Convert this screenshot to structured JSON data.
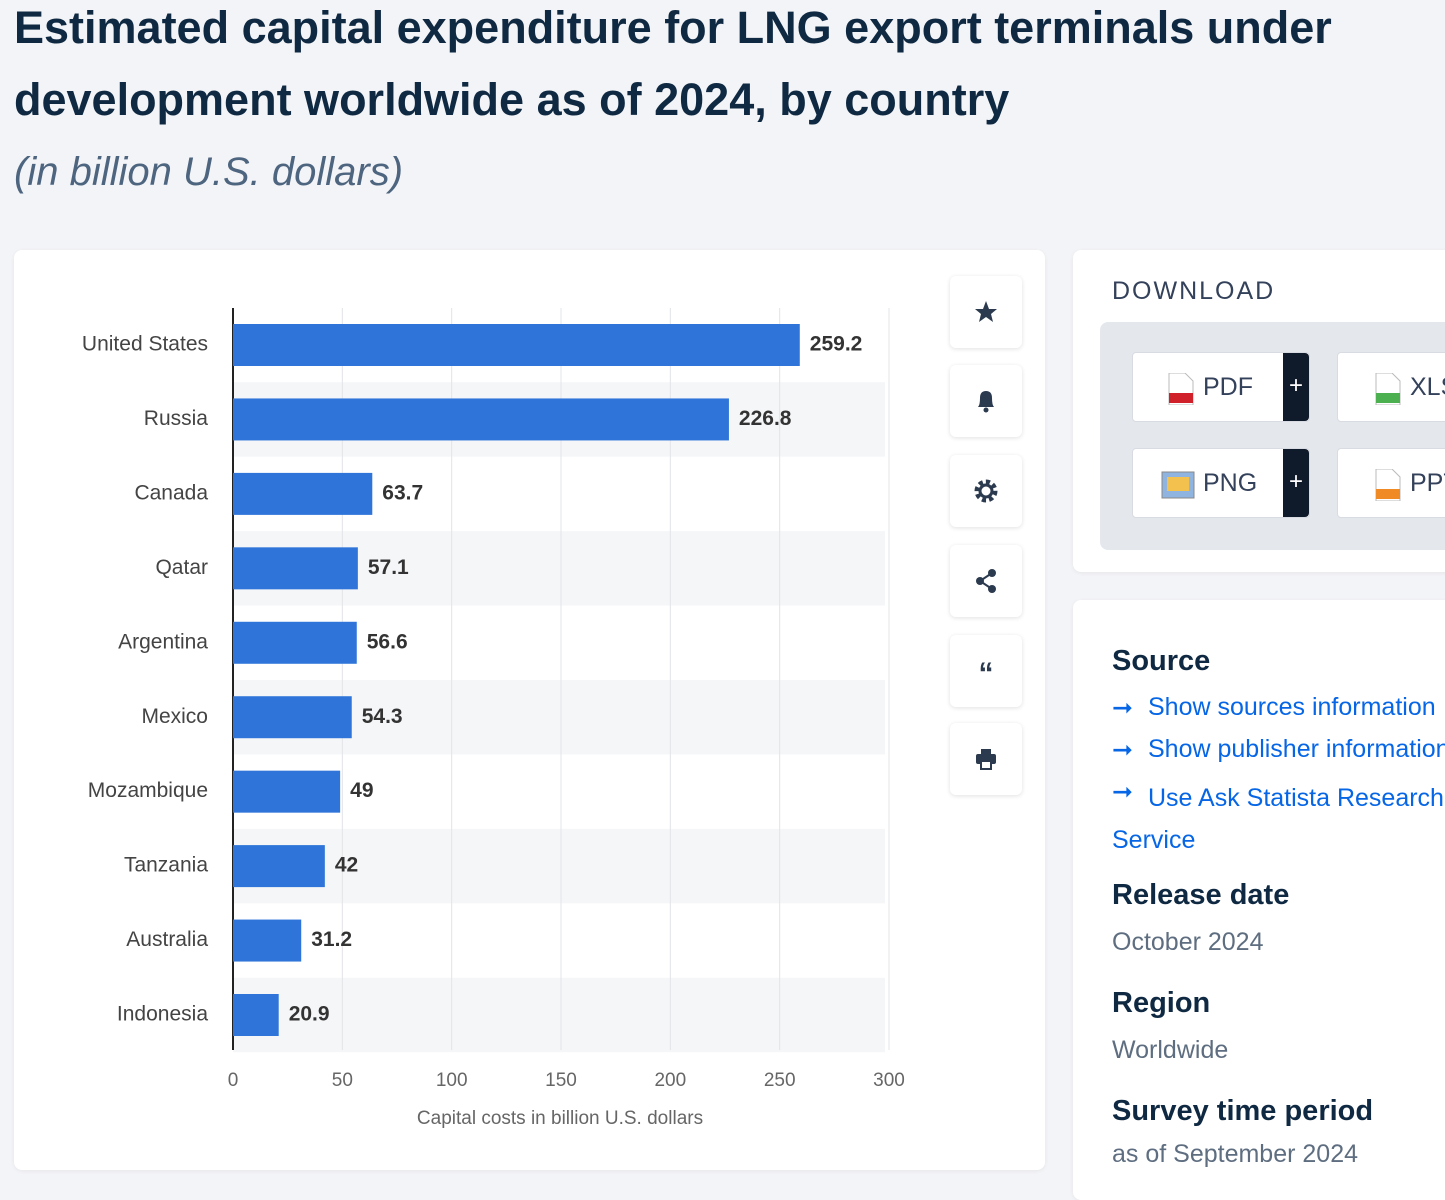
{
  "header": {
    "title": "Estimated capital expenditure for LNG export terminals under development worldwide as of 2024, by country",
    "subtitle": "(in billion U.S. dollars)"
  },
  "chart_data": {
    "type": "bar",
    "orientation": "horizontal",
    "categories": [
      "United States",
      "Russia",
      "Canada",
      "Qatar",
      "Argentina",
      "Mexico",
      "Mozambique",
      "Tanzania",
      "Australia",
      "Indonesia"
    ],
    "values": [
      259.2,
      226.8,
      63.7,
      57.1,
      56.6,
      54.3,
      49,
      42,
      31.2,
      20.9
    ],
    "color": "#2f75d9",
    "xlim": [
      0,
      300
    ],
    "xticks": [
      0,
      50,
      100,
      150,
      200,
      250,
      300
    ],
    "x_label": "Capital costs in billion U.S. dollars",
    "grid": true
  },
  "download": {
    "heading": "DOWNLOAD",
    "buttons": [
      "PDF",
      "XLS",
      "PNG",
      "PPT"
    ]
  },
  "details": {
    "source_heading": "Source",
    "links": [
      "Show sources information",
      "Show publisher information",
      "Use Ask Statista Research Service"
    ],
    "release_date": {
      "label": "Release date",
      "value": "October 2024"
    },
    "region": {
      "label": "Region",
      "value": "Worldwide"
    },
    "survey_period": {
      "label": "Survey time period",
      "value": "as of September 2024"
    }
  }
}
